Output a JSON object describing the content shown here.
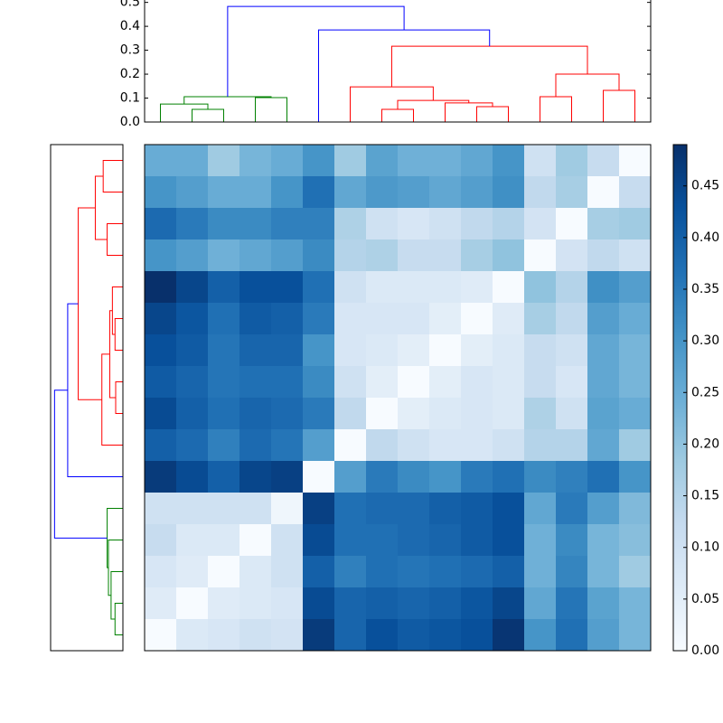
{
  "chart_data": {
    "type": "heatmap",
    "matrix": [
      [
        0.25,
        0.25,
        0.18,
        0.23,
        0.25,
        0.3,
        0.18,
        0.27,
        0.24,
        0.24,
        0.26,
        0.3,
        0.1,
        0.18,
        0.12,
        0.0
      ],
      [
        0.3,
        0.28,
        0.25,
        0.25,
        0.3,
        0.37,
        0.26,
        0.29,
        0.28,
        0.26,
        0.28,
        0.31,
        0.13,
        0.17,
        0.0,
        0.12
      ],
      [
        0.38,
        0.35,
        0.32,
        0.32,
        0.34,
        0.34,
        0.16,
        0.1,
        0.08,
        0.1,
        0.13,
        0.15,
        0.09,
        0.0,
        0.17,
        0.18
      ],
      [
        0.3,
        0.28,
        0.24,
        0.26,
        0.28,
        0.32,
        0.15,
        0.16,
        0.12,
        0.12,
        0.17,
        0.2,
        0.0,
        0.09,
        0.13,
        0.1
      ],
      [
        0.49,
        0.45,
        0.4,
        0.43,
        0.43,
        0.37,
        0.1,
        0.07,
        0.07,
        0.07,
        0.06,
        0.0,
        0.2,
        0.15,
        0.31,
        0.28
      ],
      [
        0.45,
        0.42,
        0.37,
        0.41,
        0.4,
        0.35,
        0.08,
        0.08,
        0.08,
        0.05,
        0.0,
        0.06,
        0.17,
        0.13,
        0.28,
        0.25
      ],
      [
        0.43,
        0.41,
        0.36,
        0.39,
        0.39,
        0.3,
        0.08,
        0.07,
        0.05,
        0.0,
        0.05,
        0.07,
        0.12,
        0.1,
        0.26,
        0.23
      ],
      [
        0.41,
        0.39,
        0.36,
        0.37,
        0.37,
        0.32,
        0.1,
        0.05,
        0.0,
        0.05,
        0.08,
        0.07,
        0.12,
        0.08,
        0.26,
        0.23
      ],
      [
        0.44,
        0.4,
        0.37,
        0.39,
        0.38,
        0.35,
        0.13,
        0.0,
        0.05,
        0.07,
        0.08,
        0.07,
        0.16,
        0.1,
        0.27,
        0.25
      ],
      [
        0.4,
        0.38,
        0.34,
        0.38,
        0.36,
        0.28,
        0.0,
        0.13,
        0.1,
        0.08,
        0.08,
        0.1,
        0.15,
        0.15,
        0.26,
        0.18
      ],
      [
        0.47,
        0.44,
        0.4,
        0.45,
        0.46,
        0.0,
        0.28,
        0.35,
        0.32,
        0.3,
        0.35,
        0.37,
        0.32,
        0.34,
        0.37,
        0.3
      ],
      [
        0.1,
        0.1,
        0.1,
        0.1,
        0.02,
        0.46,
        0.37,
        0.38,
        0.38,
        0.4,
        0.41,
        0.43,
        0.26,
        0.35,
        0.28,
        0.22
      ],
      [
        0.12,
        0.07,
        0.07,
        0.0,
        0.1,
        0.44,
        0.37,
        0.37,
        0.38,
        0.39,
        0.41,
        0.43,
        0.24,
        0.32,
        0.23,
        0.21
      ],
      [
        0.08,
        0.06,
        0.0,
        0.07,
        0.1,
        0.4,
        0.34,
        0.37,
        0.36,
        0.37,
        0.38,
        0.4,
        0.24,
        0.33,
        0.23,
        0.18
      ],
      [
        0.06,
        0.0,
        0.06,
        0.07,
        0.08,
        0.44,
        0.39,
        0.4,
        0.39,
        0.4,
        0.42,
        0.45,
        0.26,
        0.36,
        0.27,
        0.23
      ],
      [
        0.0,
        0.07,
        0.08,
        0.1,
        0.09,
        0.47,
        0.39,
        0.43,
        0.41,
        0.42,
        0.43,
        0.48,
        0.3,
        0.37,
        0.28,
        0.23
      ]
    ],
    "colormap": [
      "#f7fbff",
      "#deebf7",
      "#c6dbef",
      "#9ecae1",
      "#6baed6",
      "#4292c6",
      "#2171b5",
      "#08519c",
      "#08306b"
    ],
    "clim": [
      0,
      0.49
    ],
    "colorbar_ticks": [
      {
        "value": 0,
        "label": "0.00"
      },
      0.05,
      {
        "value": 0.1,
        "label": "0.10"
      },
      0.15,
      {
        "value": 0.2,
        "label": "0.20"
      },
      0.25,
      {
        "value": 0.3,
        "label": "0.30"
      },
      0.35,
      {
        "value": 0.4,
        "label": "0.40"
      },
      0.45
    ],
    "top_dendrogram": {
      "ylim": [
        0,
        0.51
      ],
      "yticks": [
        {
          "value": 0,
          "label": "0.0"
        },
        0.1,
        0.2,
        0.3,
        0.4,
        0.5
      ],
      "merges": [
        {
          "left": 1,
          "right": 2,
          "height": 0.053,
          "color": "#008000"
        },
        {
          "left": 0,
          "right": 16,
          "height": 0.075,
          "color": "#008000"
        },
        {
          "left": 3,
          "right": 4,
          "height": 0.102,
          "color": "#008000"
        },
        {
          "left": 17,
          "right": 18,
          "height": 0.106,
          "color": "#008000"
        },
        {
          "left": 7,
          "right": 8,
          "height": 0.053,
          "color": "#ff0000"
        },
        {
          "left": 10,
          "right": 11,
          "height": 0.064,
          "color": "#ff0000"
        },
        {
          "left": 9,
          "right": 21,
          "height": 0.08,
          "color": "#ff0000"
        },
        {
          "left": 20,
          "right": 22,
          "height": 0.09,
          "color": "#ff0000"
        },
        {
          "left": 6,
          "right": 23,
          "height": 0.147,
          "color": "#ff0000"
        },
        {
          "left": 12,
          "right": 13,
          "height": 0.106,
          "color": "#ff0000"
        },
        {
          "left": 14,
          "right": 15,
          "height": 0.132,
          "color": "#ff0000"
        },
        {
          "left": 25,
          "right": 26,
          "height": 0.2,
          "color": "#ff0000"
        },
        {
          "left": 24,
          "right": 27,
          "height": 0.317,
          "color": "#ff0000"
        },
        {
          "left": 5,
          "right": 28,
          "height": 0.385,
          "color": "#0000ff"
        },
        {
          "left": 19,
          "right": 29,
          "height": 0.483,
          "color": "#0000ff"
        }
      ]
    },
    "left_dendrogram": {
      "xlim": [
        0,
        0.55
      ],
      "merges": [
        {
          "left": 0,
          "right": 1,
          "height": 0.15,
          "color": "#ff0000"
        },
        {
          "left": 2,
          "right": 3,
          "height": 0.12,
          "color": "#ff0000"
        },
        {
          "left": 16,
          "right": 17,
          "height": 0.21,
          "color": "#ff0000"
        },
        {
          "left": 5,
          "right": 6,
          "height": 0.06,
          "color": "#ff0000"
        },
        {
          "left": 4,
          "right": 19,
          "height": 0.08,
          "color": "#ff0000"
        },
        {
          "left": 7,
          "right": 8,
          "height": 0.055,
          "color": "#ff0000"
        },
        {
          "left": 20,
          "right": 21,
          "height": 0.1,
          "color": "#ff0000"
        },
        {
          "left": 22,
          "right": 9,
          "height": 0.16,
          "color": "#ff0000"
        },
        {
          "left": 18,
          "right": 23,
          "height": 0.34,
          "color": "#ff0000"
        },
        {
          "left": 24,
          "right": 10,
          "height": 0.42,
          "color": "#0000ff"
        },
        {
          "left": 14,
          "right": 15,
          "height": 0.06,
          "color": "#008000"
        },
        {
          "left": 13,
          "right": 26,
          "height": 0.09,
          "color": "#008000"
        },
        {
          "left": 12,
          "right": 27,
          "height": 0.11,
          "color": "#008000"
        },
        {
          "left": 11,
          "right": 28,
          "height": 0.12,
          "color": "#008000"
        },
        {
          "left": 25,
          "right": 29,
          "height": 0.52,
          "color": "#0000ff"
        }
      ]
    }
  }
}
